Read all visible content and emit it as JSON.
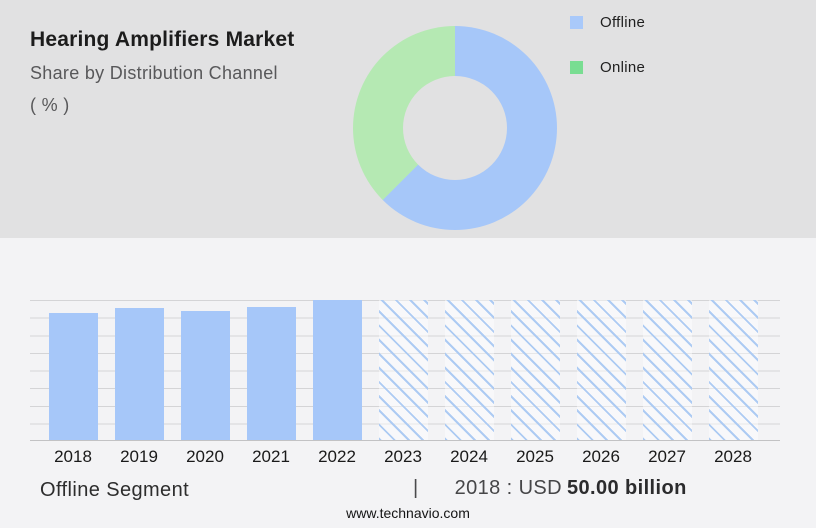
{
  "header": {
    "title": "Hearing Amplifiers Market",
    "subtitle": "Share by Distribution Channel",
    "unit_label": "( % )"
  },
  "legend": {
    "position": "top-right",
    "items": [
      {
        "label": "Offline",
        "color": "#a9c9fa"
      },
      {
        "label": "Online",
        "color": "#79dd92"
      }
    ]
  },
  "footer": {
    "segment_label": "Offline Segment",
    "separator": "|",
    "value_prefix": "2018 : USD",
    "value_bold": "50.00 billion",
    "website": "www.technavio.com"
  },
  "colors": {
    "top_background": "#e1e1e2",
    "bottom_background": "#f3f3f5",
    "bar_blue": "#a6c7f9",
    "donut_blue": "#a6c7f9",
    "donut_green": "#b5e9b3",
    "legend_blue": "#a9c9fa",
    "legend_green": "#79dd92",
    "gridline": "#d4d4d6",
    "hatch_line": "#adcbf3"
  },
  "chart_data": [
    {
      "type": "pie",
      "subtype": "donut",
      "title": "Hearing Amplifiers Market — Share by Distribution Channel (%)",
      "labels": [
        "Offline",
        "Online"
      ],
      "values": [
        62.5,
        37.5
      ],
      "colors": [
        "#a6c7f9",
        "#b5e9b3"
      ],
      "legend_position": "top-right",
      "start_angle_deg": 0,
      "note": "No numeric labels shown in image; shares estimated from arc angles (blue arc ≈ 225° clockwise from top)."
    },
    {
      "type": "bar",
      "title": "Offline Segment",
      "annotation": "2018 : USD 50.00 billion",
      "categories": [
        "2018",
        "2019",
        "2020",
        "2021",
        "2022",
        "2023",
        "2024",
        "2025",
        "2026",
        "2027",
        "2028"
      ],
      "series": [
        {
          "name": "Offline segment market size (USD billion, estimated)",
          "values": [
            50.0,
            51.7,
            50.4,
            52.4,
            55.0,
            55.0,
            55.0,
            55.0,
            55.0,
            55.0,
            55.0
          ]
        }
      ],
      "heights_pct": [
        91,
        94,
        92,
        95.3,
        100,
        100,
        100,
        100,
        100,
        100,
        100
      ],
      "forecast": [
        false,
        false,
        false,
        false,
        false,
        true,
        true,
        true,
        true,
        true,
        true
      ],
      "forecast_style": "diagonal-hatch",
      "xlabel": "",
      "ylabel": "",
      "ylim": [
        0,
        55
      ],
      "y_gridlines": 9,
      "y_axis_labels_shown": false,
      "note": "Only the 2018 value is labeled (USD 50.00 billion); other values estimated from bar heights. 2023–2028 are drawn as equal full-height hatched forecast bars."
    }
  ]
}
